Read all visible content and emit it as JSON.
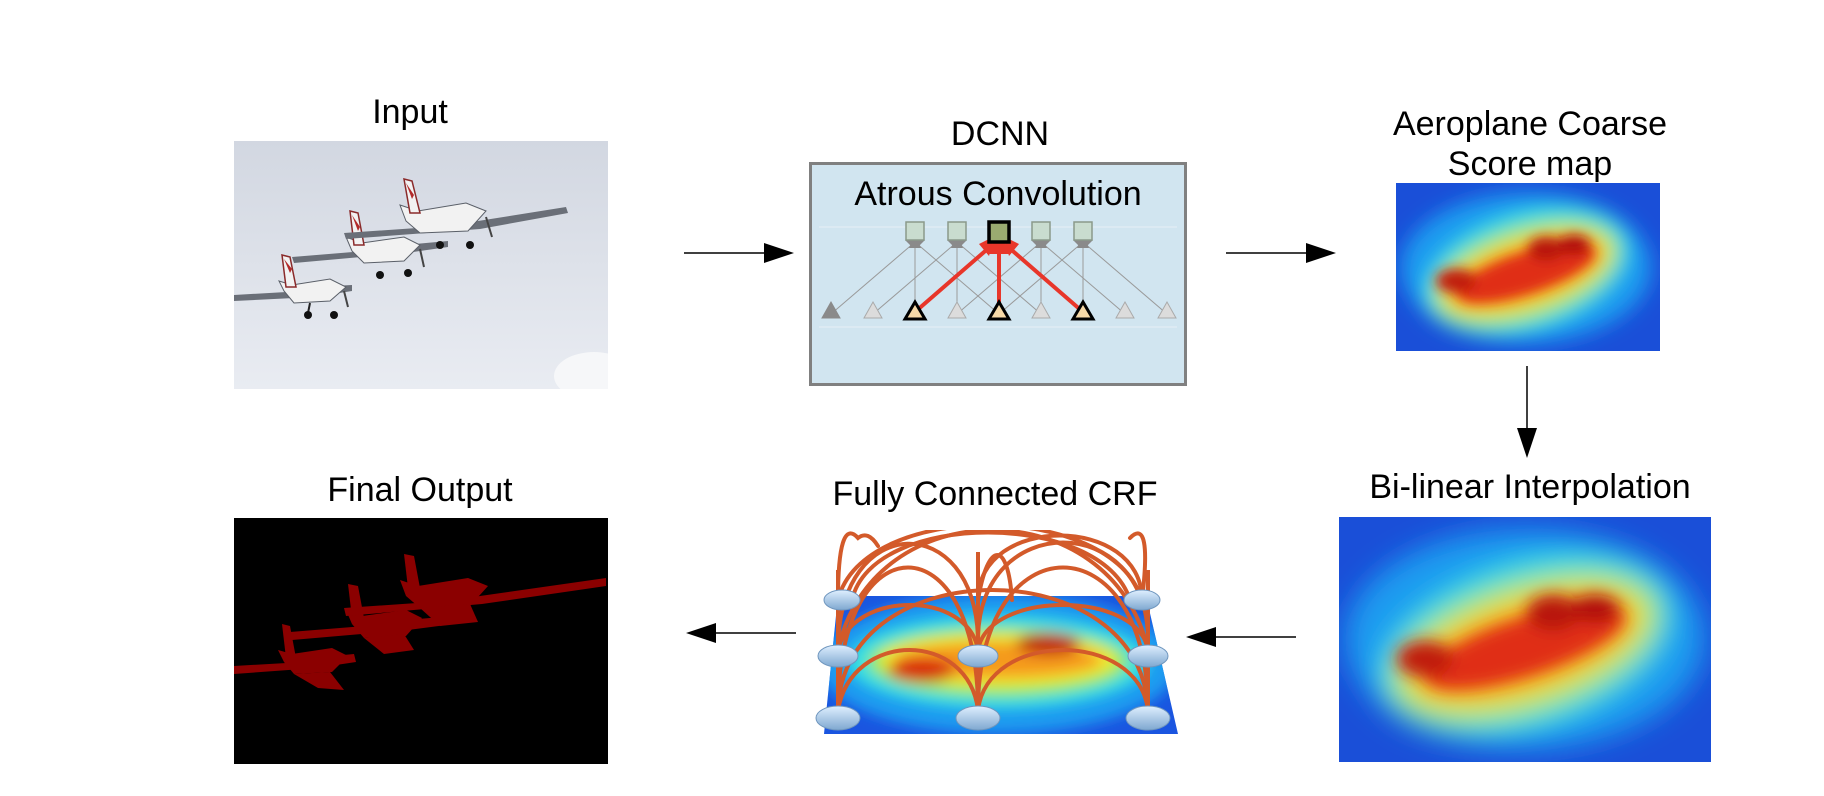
{
  "stages": {
    "input": {
      "title": "Input"
    },
    "dcnn": {
      "title": "DCNN",
      "inner_title": "Atrous Convolution"
    },
    "coarse": {
      "title_line1": "Aeroplane Coarse",
      "title_line2": "Score map"
    },
    "bilinear": {
      "title": "Bi-linear Interpolation"
    },
    "crf": {
      "title": "Fully Connected CRF"
    },
    "output": {
      "title": "Final Output"
    }
  },
  "colors": {
    "dcnn_box_fill": "#d1e5f0",
    "dcnn_box_border": "#808080",
    "red_arrow": "#e8362a",
    "crf_arc": "#d35a2a",
    "segment_fill": "#8b0000",
    "sky": "#dfe4ec"
  }
}
